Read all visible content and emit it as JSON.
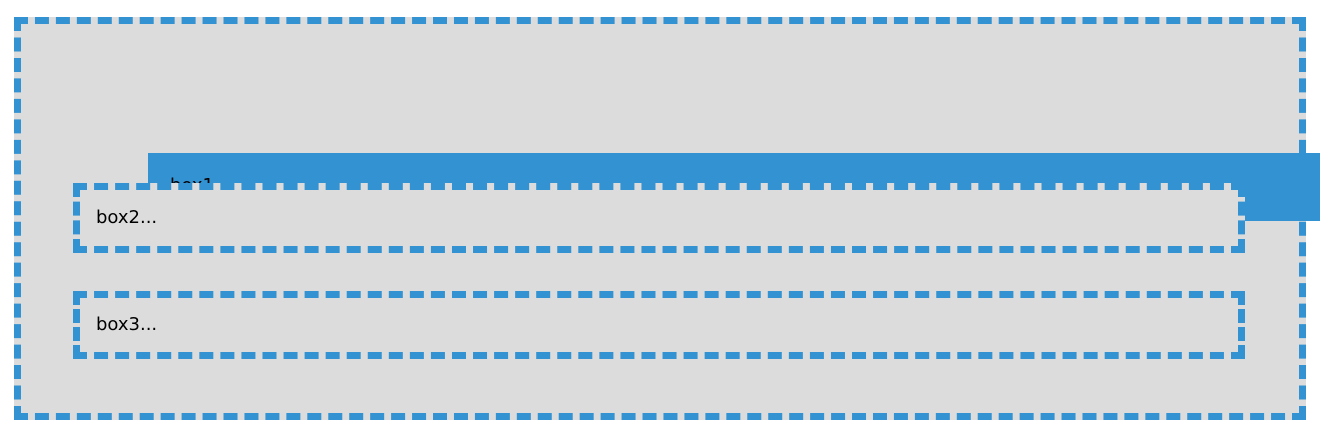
{
  "colors": {
    "accent": "#3392d1",
    "box_background": "#dcdcdc",
    "text": "#000000"
  },
  "box1": {
    "label": "box1"
  },
  "box2": {
    "label": "box2..."
  },
  "box3": {
    "label": "box3..."
  }
}
